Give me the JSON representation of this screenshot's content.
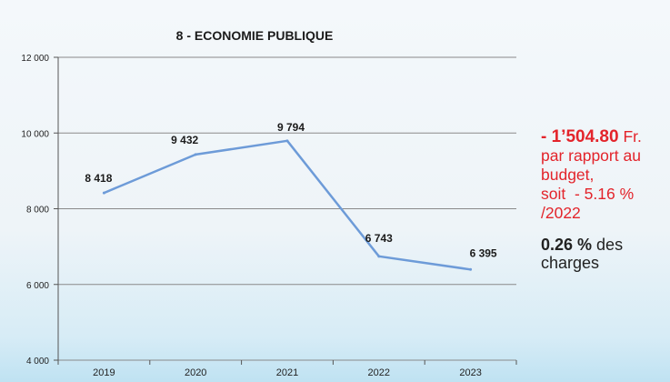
{
  "chart_data": {
    "type": "line",
    "title": "8 - ECONOMIE PUBLIQUE",
    "categories": [
      "2019",
      "2020",
      "2021",
      "2022",
      "2023"
    ],
    "series": [
      {
        "values": [
          8418,
          9432,
          9794,
          6743,
          6395
        ],
        "color": "#6d9bd8"
      }
    ],
    "data_labels": [
      "8 418",
      "9 432",
      "9 794",
      "6 743",
      "6 395"
    ],
    "ylim": [
      4000,
      12000
    ],
    "yticks": [
      4000,
      6000,
      8000,
      10000,
      12000
    ],
    "ytick_labels": [
      "4 000",
      "6 000",
      "8 000",
      "10 000",
      "12 000"
    ],
    "grid": true,
    "xlabel": "",
    "ylabel": ""
  },
  "annotations": {
    "variance": {
      "amount": "- 1’504.80",
      "unit": " Fr.",
      "line2": "par rapport au",
      "line3": "budget,",
      "line4": "soit  - 5.16 %",
      "line5": "/2022"
    },
    "share": {
      "value": "0.26 %",
      "suffix": " des",
      "line2": "charges"
    }
  },
  "colors": {
    "accent_red": "#e3242b",
    "line": "#6d9bd8",
    "grid": "#8a8a8a"
  }
}
